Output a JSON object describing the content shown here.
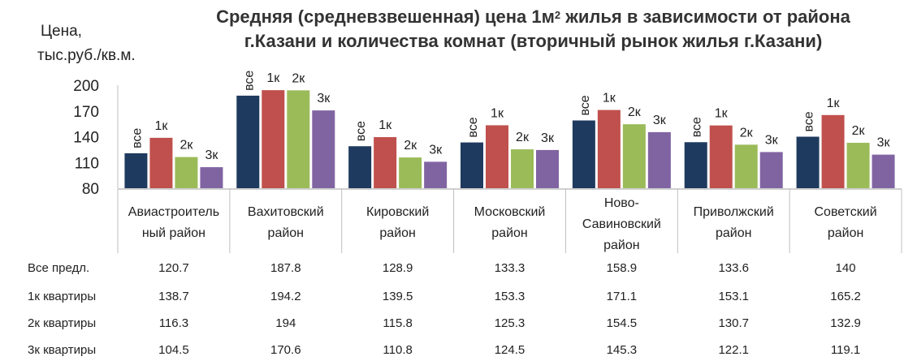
{
  "chart_data": {
    "type": "bar",
    "title_main": "Средняя (средневзвешенная) цена 1м",
    "title_sup": "2",
    "title_rest": " жилья в зависимости от района",
    "title_line2": "г.Казани и количества комнат (вторичный рынок жилья г.Казани)",
    "ylabel_line1": "Цена,",
    "ylabel_line2": "тыс.руб./кв.м.",
    "ylim": [
      80,
      200
    ],
    "yticks": [
      80,
      110,
      140,
      170,
      200
    ],
    "categories": [
      [
        "Авиастроитель",
        "ный район"
      ],
      [
        "Вахитовский",
        "район"
      ],
      [
        "Кировский",
        "район"
      ],
      [
        "Московский",
        "район"
      ],
      [
        "Ново-",
        "Савиновский",
        "район"
      ],
      [
        "Приволжский",
        "район"
      ],
      [
        "Советский",
        "район"
      ]
    ],
    "bar_labels": [
      "все",
      "1к",
      "2к",
      "3к"
    ],
    "series": [
      {
        "name": "Все предл.",
        "color": "#1f3a5f",
        "values": [
          120.7,
          187.8,
          128.9,
          133.3,
          158.9,
          133.6,
          140
        ]
      },
      {
        "name": "1к квартиры",
        "color": "#c0504d",
        "values": [
          138.7,
          194.2,
          139.5,
          153.3,
          171.1,
          153.1,
          165.2
        ]
      },
      {
        "name": "2к квартиры",
        "color": "#9bbb59",
        "values": [
          116.3,
          194,
          115.8,
          125.3,
          154.5,
          130.7,
          132.9
        ]
      },
      {
        "name": "3к квартиры",
        "color": "#8064a2",
        "values": [
          104.5,
          170.6,
          110.8,
          124.5,
          145.3,
          122.1,
          119.1
        ]
      }
    ],
    "table_values": [
      [
        "120.7",
        "187.8",
        "128.9",
        "133.3",
        "158.9",
        "133.6",
        "140"
      ],
      [
        "138.7",
        "194.2",
        "139.5",
        "153.3",
        "171.1",
        "153.1",
        "165.2"
      ],
      [
        "116.3",
        "194",
        "115.8",
        "125.3",
        "154.5",
        "130.7",
        "132.9"
      ],
      [
        "104.5",
        "170.6",
        "110.8",
        "124.5",
        "145.3",
        "122.1",
        "119.1"
      ]
    ],
    "legend": "data-table-below"
  }
}
